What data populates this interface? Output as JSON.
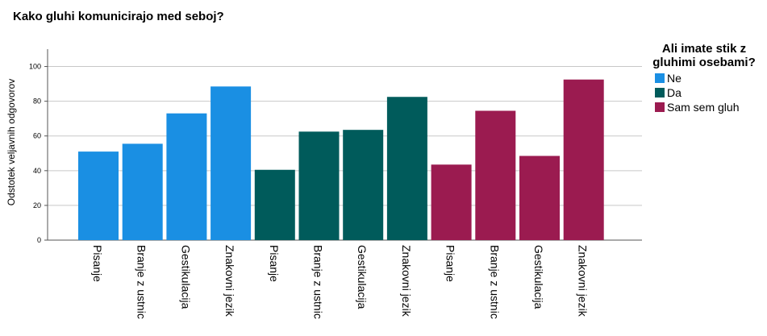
{
  "chart_data": {
    "type": "bar",
    "title": "Kako gluhi komunicirajo med seboj?",
    "ylabel": "Odstotek veljavnih odgovorov",
    "xlabel": "",
    "ylim": [
      0,
      110
    ],
    "yticks": [
      0,
      20,
      40,
      60,
      80,
      100
    ],
    "grid": true,
    "legend_title": "Ali imate stik z gluhimi osebami?",
    "legend_position": "right",
    "categories": [
      "Pisanje",
      "Branje z ustnic",
      "Gestikulacija",
      "Znakovni jezik"
    ],
    "series": [
      {
        "name": "Ne",
        "color": "#1a8fe3",
        "values": [
          51,
          55.5,
          73,
          88.5
        ]
      },
      {
        "name": "Da",
        "color": "#005b5b",
        "values": [
          40.5,
          62.5,
          63.5,
          82.5
        ]
      },
      {
        "name": "Sam sem gluh",
        "color": "#9b1b50",
        "values": [
          43.5,
          74.5,
          48.5,
          92.5
        ]
      }
    ]
  }
}
